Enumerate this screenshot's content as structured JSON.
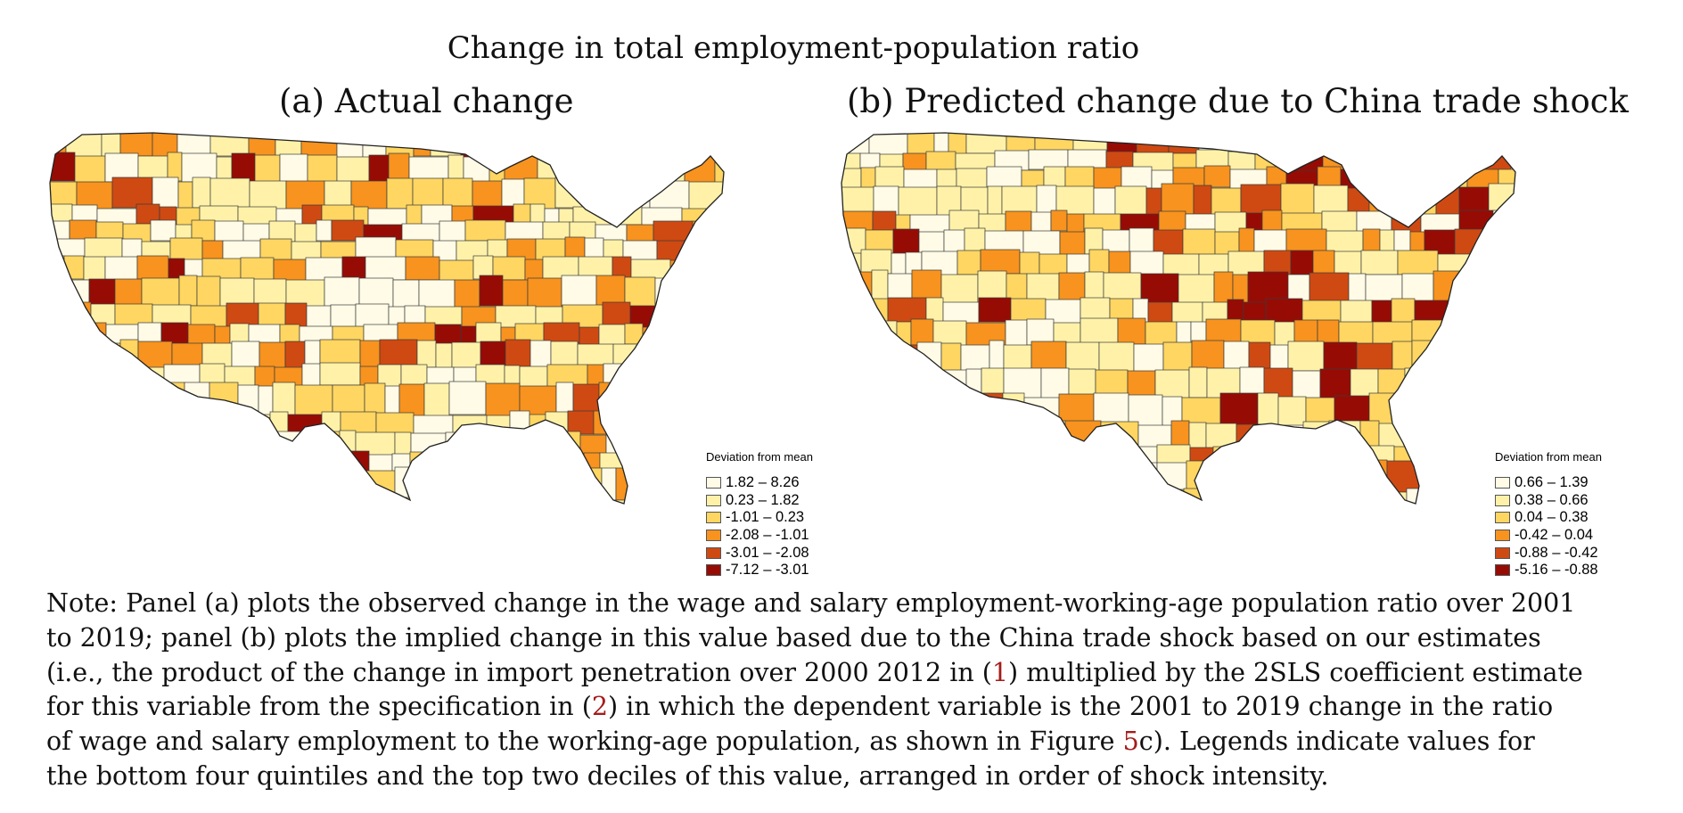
{
  "figure_title": "Change in total employment-population ratio",
  "panels": [
    {
      "title": "(a) Actual change",
      "legend": {
        "title": "Deviation from mean",
        "items": [
          {
            "label": "1.82 – 8.26",
            "color": "#fffbe6"
          },
          {
            "label": "0.23 – 1.82",
            "color": "#fff2a8"
          },
          {
            "label": "-1.01 – 0.23",
            "color": "#fed661"
          },
          {
            "label": "-2.08 – -1.01",
            "color": "#f7931e"
          },
          {
            "label": "-3.01 – -2.08",
            "color": "#cf4a12"
          },
          {
            "label": "-7.12 – -3.01",
            "color": "#960c05"
          }
        ]
      }
    },
    {
      "title": "(b) Predicted change due to China trade shock",
      "legend": {
        "title": "Deviation from mean",
        "items": [
          {
            "label": "0.66 – 1.39",
            "color": "#fffbe6"
          },
          {
            "label": "0.38 – 0.66",
            "color": "#fff2a8"
          },
          {
            "label": "0.04 – 0.38",
            "color": "#fed661"
          },
          {
            "label": "-0.42 – 0.04",
            "color": "#f7931e"
          },
          {
            "label": "-0.88 – -0.42",
            "color": "#cf4a12"
          },
          {
            "label": "-5.16 – -0.88",
            "color": "#960c05"
          }
        ]
      }
    }
  ],
  "note": {
    "line1": "Note: Panel (a) plots the observed change in the wage and salary employment-working-age population ratio over 2001",
    "line2": "to 2019; panel (b) plots the implied change in this value based due to the China trade shock based on our estimates",
    "line3_pre": "(i.e., the product of the change in import penetration over 2000 2012 in (",
    "ref1": "1",
    "line3_post": ") multiplied by the 2SLS coefficient estimate",
    "line4_pre": "for this variable from the specification in (",
    "ref2": "2",
    "line4_post": ") in which the dependent variable is the 2001 to 2019 change in the ratio",
    "line5_pre": "of wage and salary employment to the working-age population, as shown in Figure ",
    "ref3": "5",
    "line5_post": "c). Legends indicate values for",
    "line6": "the bottom four quintiles and the top two deciles of this value, arranged in order of shock intensity."
  }
}
